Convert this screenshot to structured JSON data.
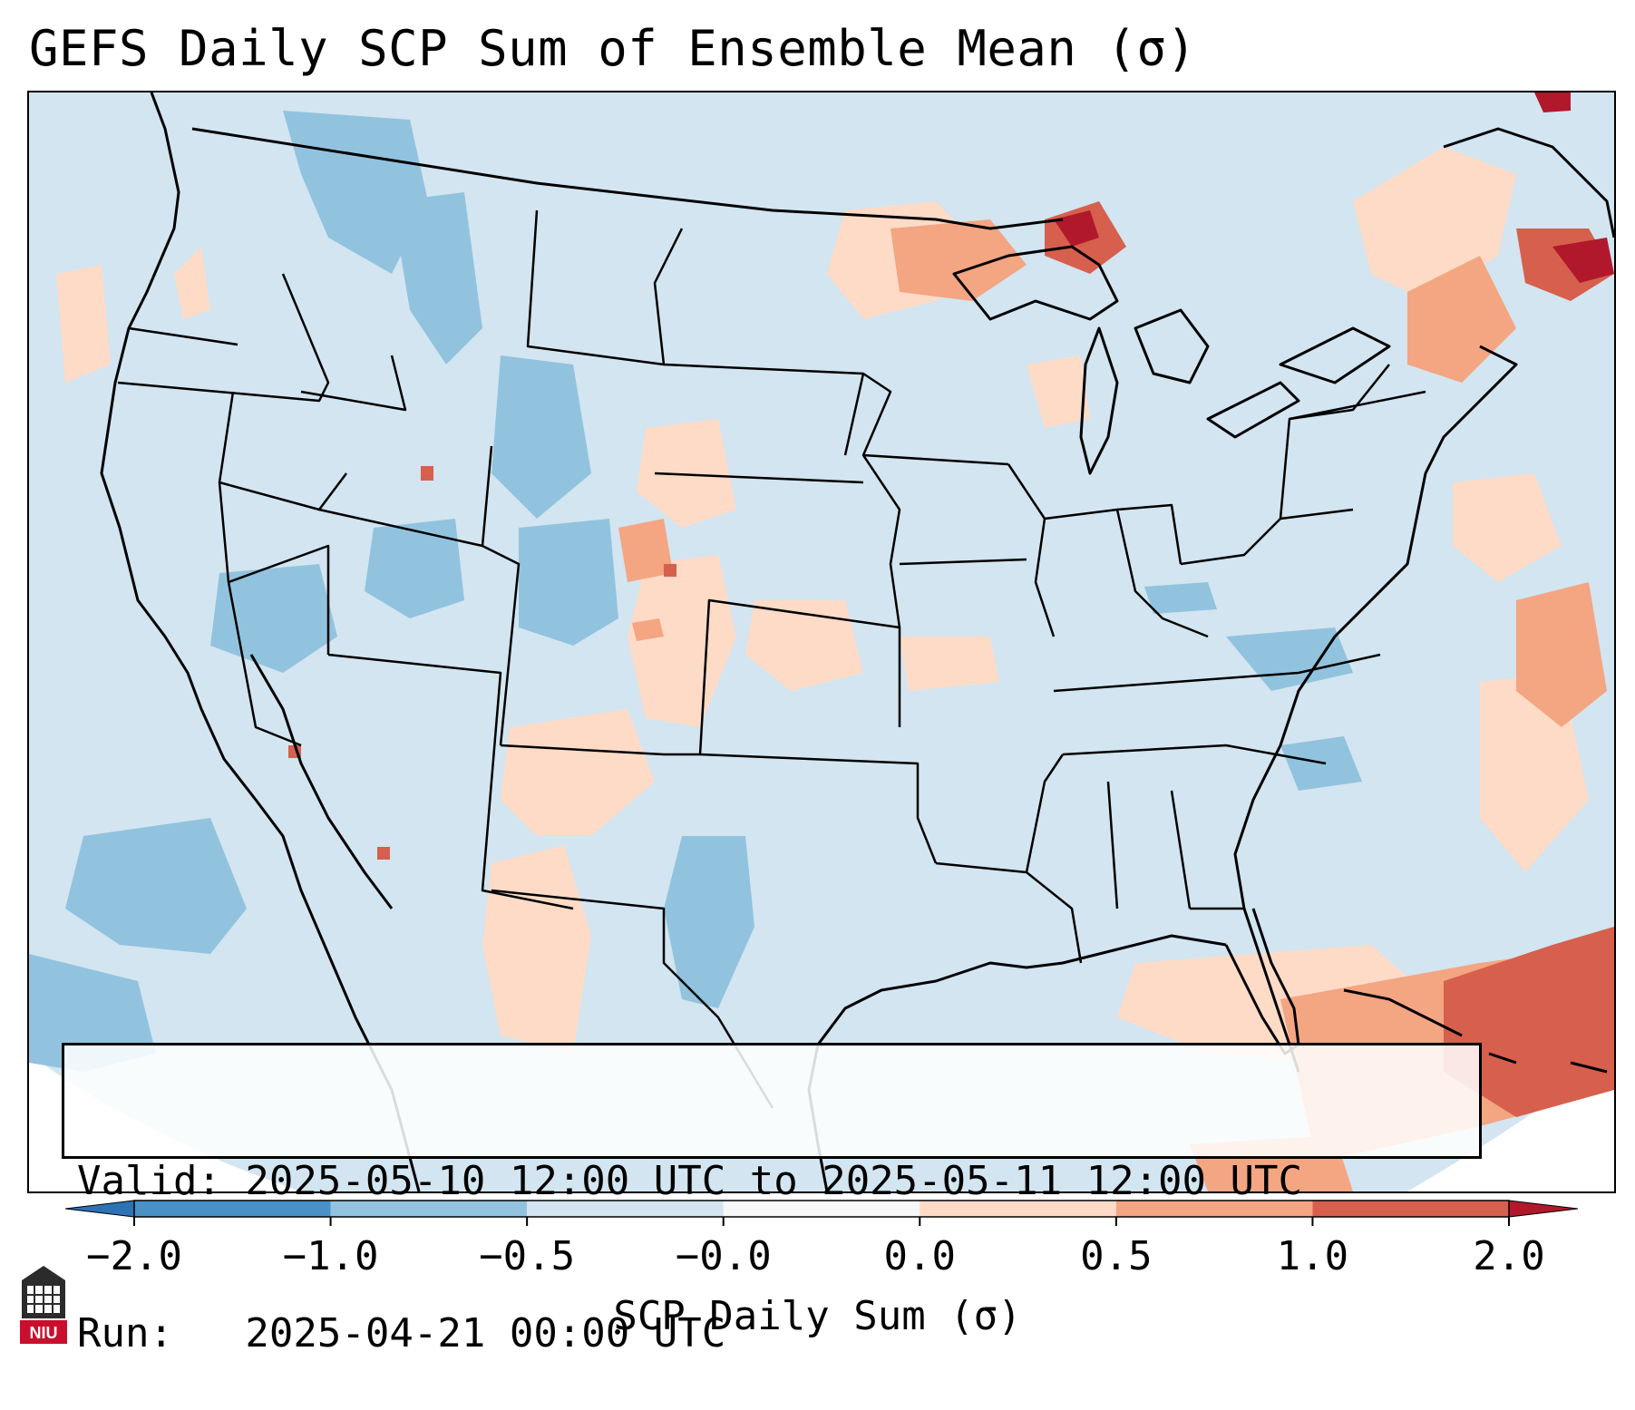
{
  "title": "GEFS Daily SCP Sum of Ensemble Mean (σ)",
  "info": {
    "valid_line": "Valid: 2025-05-10 12:00 UTC to 2025-05-11 12:00 UTC",
    "run_line": "Run:   2025-04-21 00:00 UTC"
  },
  "colorbar": {
    "label": "SCP Daily Sum (σ)",
    "ticks": [
      "−2.0",
      "−1.0",
      "−0.5",
      "−0.0",
      "0.0",
      "0.5",
      "1.0",
      "2.0"
    ],
    "bins": [
      {
        "range": "< -2.0",
        "color": "#2c72b5"
      },
      {
        "range": "-2.0 to -1.0",
        "color": "#4a91c7"
      },
      {
        "range": "-1.0 to -0.5",
        "color": "#92c3de"
      },
      {
        "range": "-0.5 to -0.0",
        "color": "#d2e5f0"
      },
      {
        "range": "-0.0 to 0.0",
        "color": "#f7f7f7"
      },
      {
        "range": "0.0 to 0.5",
        "color": "#fddbc7"
      },
      {
        "range": "0.5 to 1.0",
        "color": "#f4a582"
      },
      {
        "range": "1.0 to 2.0",
        "color": "#d6604d"
      },
      {
        "range": "> 2.0",
        "color": "#b2182b"
      }
    ]
  },
  "map": {
    "region": "Contiguous United States",
    "background_color": "#d2e5f0"
  },
  "logo": {
    "text": "NIU",
    "color": "#c8102e"
  }
}
